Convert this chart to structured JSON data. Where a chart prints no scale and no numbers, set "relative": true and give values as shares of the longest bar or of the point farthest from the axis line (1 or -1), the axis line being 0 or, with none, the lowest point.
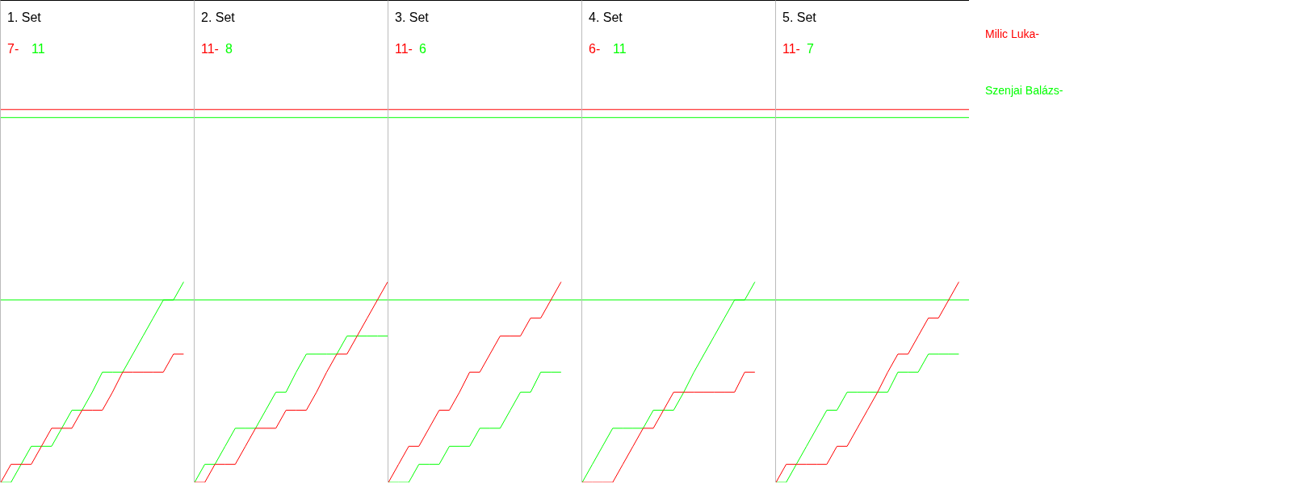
{
  "chart_data": [
    {
      "type": "line",
      "title": "1. Set",
      "annotations": [
        "7-",
        "11"
      ],
      "relative": true,
      "categories": [
        null,
        null,
        null,
        null,
        null,
        null,
        null,
        null,
        null,
        null,
        null,
        null,
        null,
        null,
        null,
        null,
        null,
        null,
        null,
        null
      ],
      "marker": "none",
      "ref_lines": [
        {
          "axis": "y",
          "value": 1.86,
          "color": "#ff0000"
        },
        {
          "axis": "y",
          "value": 1.82,
          "color": "#00ff00"
        },
        {
          "axis": "y",
          "value": 0.91,
          "color": "#00ff00"
        }
      ],
      "series": [
        {
          "name": "Milic Luka-",
          "color": "#ff0000",
          "values": [
            0,
            0.09,
            0.09,
            0.09,
            0.18,
            0.27,
            0.27,
            0.27,
            0.36,
            0.36,
            0.36,
            0.45,
            0.55,
            0.55,
            0.55,
            0.55,
            0.55,
            0.64,
            0.64,
            null
          ]
        },
        {
          "name": "Szenjai Balázs-",
          "color": "#00ff00",
          "values": [
            0,
            0,
            0.09,
            0.18,
            0.18,
            0.18,
            0.27,
            0.36,
            0.36,
            0.45,
            0.55,
            0.55,
            0.55,
            0.64,
            0.73,
            0.82,
            0.91,
            0.91,
            1,
            null
          ]
        }
      ]
    },
    {
      "type": "line",
      "title": "2. Set",
      "annotations": [
        "11-",
        "8"
      ],
      "relative": true,
      "categories": [
        null,
        null,
        null,
        null,
        null,
        null,
        null,
        null,
        null,
        null,
        null,
        null,
        null,
        null,
        null,
        null,
        null,
        null,
        null,
        null
      ],
      "marker": "none",
      "ref_lines": [
        {
          "axis": "y",
          "value": 1.86,
          "color": "#ff0000"
        },
        {
          "axis": "y",
          "value": 1.82,
          "color": "#00ff00"
        },
        {
          "axis": "y",
          "value": 0.91,
          "color": "#00ff00"
        }
      ],
      "series": [
        {
          "color": "#ff0000",
          "values": [
            0,
            0,
            0.09,
            0.09,
            0.09,
            0.18,
            0.27,
            0.27,
            0.27,
            0.36,
            0.36,
            0.36,
            0.45,
            0.55,
            0.64,
            0.64,
            0.73,
            0.82,
            0.91,
            1
          ]
        },
        {
          "color": "#00ff00",
          "values": [
            0,
            0.09,
            0.09,
            0.18,
            0.27,
            0.27,
            0.27,
            0.36,
            0.45,
            0.45,
            0.55,
            0.64,
            0.64,
            0.64,
            0.64,
            0.73,
            0.73,
            0.73,
            0.73,
            0.73
          ]
        }
      ]
    },
    {
      "type": "line",
      "title": "3. Set",
      "annotations": [
        "11-",
        "6"
      ],
      "relative": true,
      "categories": [
        null,
        null,
        null,
        null,
        null,
        null,
        null,
        null,
        null,
        null,
        null,
        null,
        null,
        null,
        null,
        null,
        null,
        null,
        null,
        null
      ],
      "marker": "none",
      "ref_lines": [
        {
          "axis": "y",
          "value": 1.86,
          "color": "#ff0000"
        },
        {
          "axis": "y",
          "value": 1.82,
          "color": "#00ff00"
        },
        {
          "axis": "y",
          "value": 0.91,
          "color": "#00ff00"
        }
      ],
      "series": [
        {
          "color": "#ff0000",
          "values": [
            0,
            0.09,
            0.18,
            0.18,
            0.27,
            0.36,
            0.36,
            0.45,
            0.55,
            0.55,
            0.64,
            0.73,
            0.73,
            0.73,
            0.82,
            0.82,
            0.91,
            1,
            null,
            null
          ]
        },
        {
          "color": "#00ff00",
          "values": [
            0,
            0,
            0,
            0.09,
            0.09,
            0.09,
            0.18,
            0.18,
            0.18,
            0.27,
            0.27,
            0.27,
            0.36,
            0.45,
            0.45,
            0.55,
            0.55,
            0.55,
            null,
            null
          ]
        }
      ]
    },
    {
      "type": "line",
      "title": "4. Set",
      "annotations": [
        "6-",
        "11"
      ],
      "relative": true,
      "categories": [
        null,
        null,
        null,
        null,
        null,
        null,
        null,
        null,
        null,
        null,
        null,
        null,
        null,
        null,
        null,
        null,
        null,
        null,
        null,
        null
      ],
      "marker": "none",
      "ref_lines": [
        {
          "axis": "y",
          "value": 1.86,
          "color": "#ff0000"
        },
        {
          "axis": "y",
          "value": 1.82,
          "color": "#00ff00"
        },
        {
          "axis": "y",
          "value": 0.91,
          "color": "#00ff00"
        }
      ],
      "series": [
        {
          "color": "#ff0000",
          "values": [
            0,
            0,
            0,
            0,
            0.09,
            0.18,
            0.27,
            0.27,
            0.36,
            0.45,
            0.45,
            0.45,
            0.45,
            0.45,
            0.45,
            0.45,
            0.55,
            0.55,
            null,
            null
          ]
        },
        {
          "color": "#00ff00",
          "values": [
            0,
            0.09,
            0.18,
            0.27,
            0.27,
            0.27,
            0.27,
            0.36,
            0.36,
            0.36,
            0.45,
            0.55,
            0.64,
            0.73,
            0.82,
            0.91,
            0.91,
            1,
            null,
            null
          ]
        }
      ]
    },
    {
      "type": "line",
      "title": "5. Set",
      "annotations": [
        "11-",
        "7"
      ],
      "relative": true,
      "categories": [
        null,
        null,
        null,
        null,
        null,
        null,
        null,
        null,
        null,
        null,
        null,
        null,
        null,
        null,
        null,
        null,
        null,
        null,
        null,
        null
      ],
      "marker": "none",
      "ref_lines": [
        {
          "axis": "y",
          "value": 1.86,
          "color": "#ff0000"
        },
        {
          "axis": "y",
          "value": 1.82,
          "color": "#00ff00"
        },
        {
          "axis": "y",
          "value": 0.91,
          "color": "#00ff00"
        }
      ],
      "series": [
        {
          "color": "#ff0000",
          "values": [
            0,
            0.09,
            0.09,
            0.09,
            0.09,
            0.09,
            0.18,
            0.18,
            0.27,
            0.36,
            0.45,
            0.55,
            0.64,
            0.64,
            0.73,
            0.82,
            0.82,
            0.91,
            1,
            null
          ]
        },
        {
          "color": "#00ff00",
          "values": [
            0,
            0,
            0.09,
            0.18,
            0.27,
            0.36,
            0.36,
            0.45,
            0.45,
            0.45,
            0.45,
            0.45,
            0.55,
            0.55,
            0.55,
            0.64,
            0.64,
            0.64,
            0.64,
            null
          ]
        }
      ]
    }
  ]
}
